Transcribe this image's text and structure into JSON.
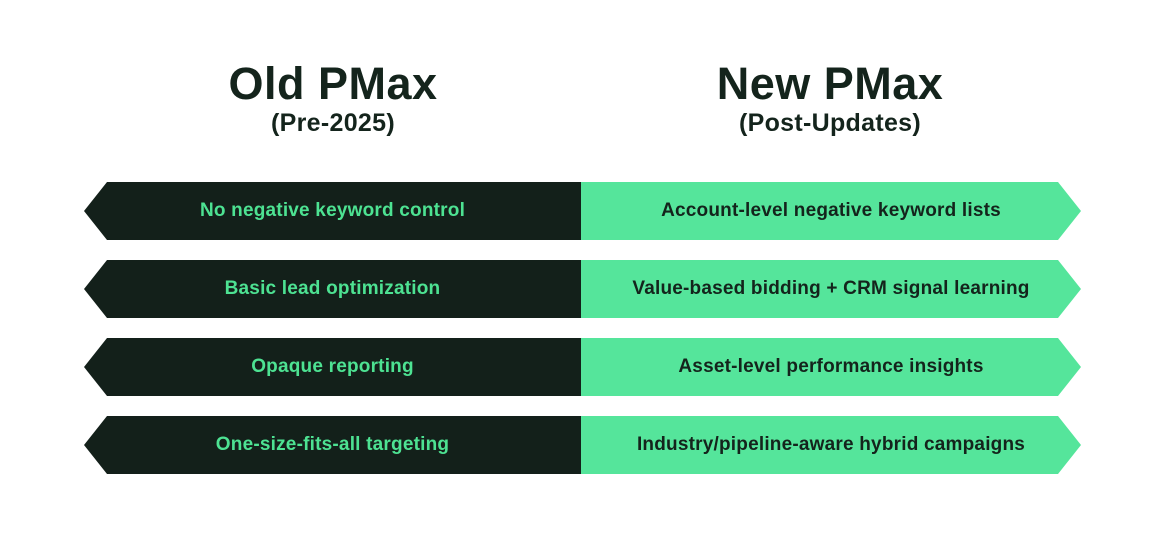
{
  "colors": {
    "background": "#ffffff",
    "dark_fill": "#13201a",
    "green_fill": "#55e59b",
    "green_text": "#4de292",
    "dark_text": "#14241c"
  },
  "header": {
    "old": {
      "title": "Old PMax",
      "subtitle": "(Pre-2025)"
    },
    "new": {
      "title": "New PMax",
      "subtitle": "(Post-Updates)"
    }
  },
  "rows": [
    {
      "old": "No negative keyword control",
      "new": "Account-level negative keyword lists"
    },
    {
      "old": "Basic lead optimization",
      "new": "Value-based bidding + CRM signal learning"
    },
    {
      "old": "Opaque reporting",
      "new": "Asset-level performance insights"
    },
    {
      "old": "One-size-fits-all targeting",
      "new": "Industry/pipeline-aware hybrid campaigns"
    }
  ]
}
